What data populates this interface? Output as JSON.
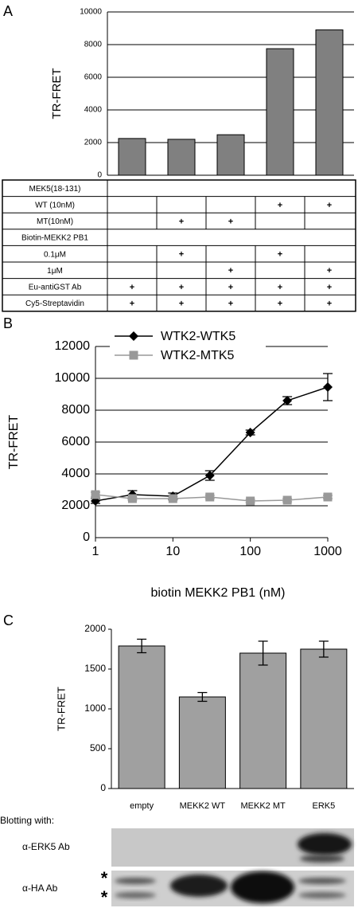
{
  "chart_data": [
    {
      "type": "bar",
      "panel": "A",
      "ylabel": "TR-FRET",
      "categories": [
        null,
        null,
        null,
        null,
        null
      ],
      "values": [
        2250,
        2200,
        2480,
        7750,
        8900
      ],
      "color": "#808080",
      "ylim": [
        0,
        10000
      ],
      "yticks": [
        0,
        2000,
        4000,
        6000,
        8000,
        10000
      ],
      "grid": true,
      "table": {
        "rows": [
          {
            "label": "MEK5(18-131)"
          },
          {
            "label": "WT (10nM)",
            "cells": [
              null,
              null,
              null,
              "+",
              "+"
            ]
          },
          {
            "label": "MT(10nM)",
            "cells": [
              null,
              "+",
              "+",
              null,
              null
            ]
          },
          {
            "label": "Biotin-MEKK2 PB1"
          },
          {
            "label": "0.1μM",
            "cells": [
              null,
              "+",
              null,
              "+",
              null
            ]
          },
          {
            "label": "1μM",
            "cells": [
              null,
              null,
              "+",
              null,
              "+"
            ]
          },
          {
            "label": "Eu-antiGST Ab",
            "cells": [
              "+",
              "+",
              "+",
              "+",
              "+"
            ]
          },
          {
            "label": "Cy5-Streptavidin",
            "cells": [
              "+",
              "+",
              "+",
              "+",
              "+"
            ]
          }
        ]
      }
    },
    {
      "type": "line",
      "panel": "B",
      "xlabel": "biotin MEKK2 PB1 (nM)",
      "ylabel": "TR-FRET",
      "x": [
        1,
        3,
        10,
        30,
        100,
        300,
        1000
      ],
      "series": [
        {
          "name": "WTK2-WTK5",
          "color": "#000000",
          "marker": "diamond",
          "values": [
            2300,
            2700,
            2600,
            3900,
            6600,
            8600,
            9450
          ],
          "errors": [
            150,
            250,
            200,
            300,
            150,
            250,
            850
          ]
        },
        {
          "name": "WTK2-MTK5",
          "color": "#999999",
          "marker": "square",
          "values": [
            2700,
            2450,
            2450,
            2550,
            2300,
            2350,
            2550
          ],
          "errors": [
            150,
            100,
            100,
            100,
            100,
            100,
            100
          ]
        }
      ],
      "xscale": "log",
      "xlim": [
        1,
        1000
      ],
      "xticks": [
        1,
        10,
        100,
        1000
      ],
      "ylim": [
        0,
        12000
      ],
      "yticks": [
        0,
        2000,
        4000,
        6000,
        8000,
        10000,
        12000
      ],
      "grid": true,
      "legend": "upper left"
    },
    {
      "type": "bar",
      "panel": "C",
      "ylabel": "TR-FRET",
      "categories": [
        "empty",
        "MEKK2 WT",
        "MEKK2 MT",
        "ERK5"
      ],
      "values": [
        1790,
        1150,
        1700,
        1750
      ],
      "errors": [
        85,
        55,
        150,
        100
      ],
      "color": "#a0a0a0",
      "ylim": [
        0,
        2000
      ],
      "yticks": [
        0,
        500,
        1000,
        1500,
        2000
      ],
      "grid": false,
      "blot_title": "Blotting with:",
      "blot_rows": [
        "α-ERK5 Ab",
        "α-HA Ab"
      ],
      "blot_markers": [
        "*",
        "*"
      ]
    }
  ]
}
